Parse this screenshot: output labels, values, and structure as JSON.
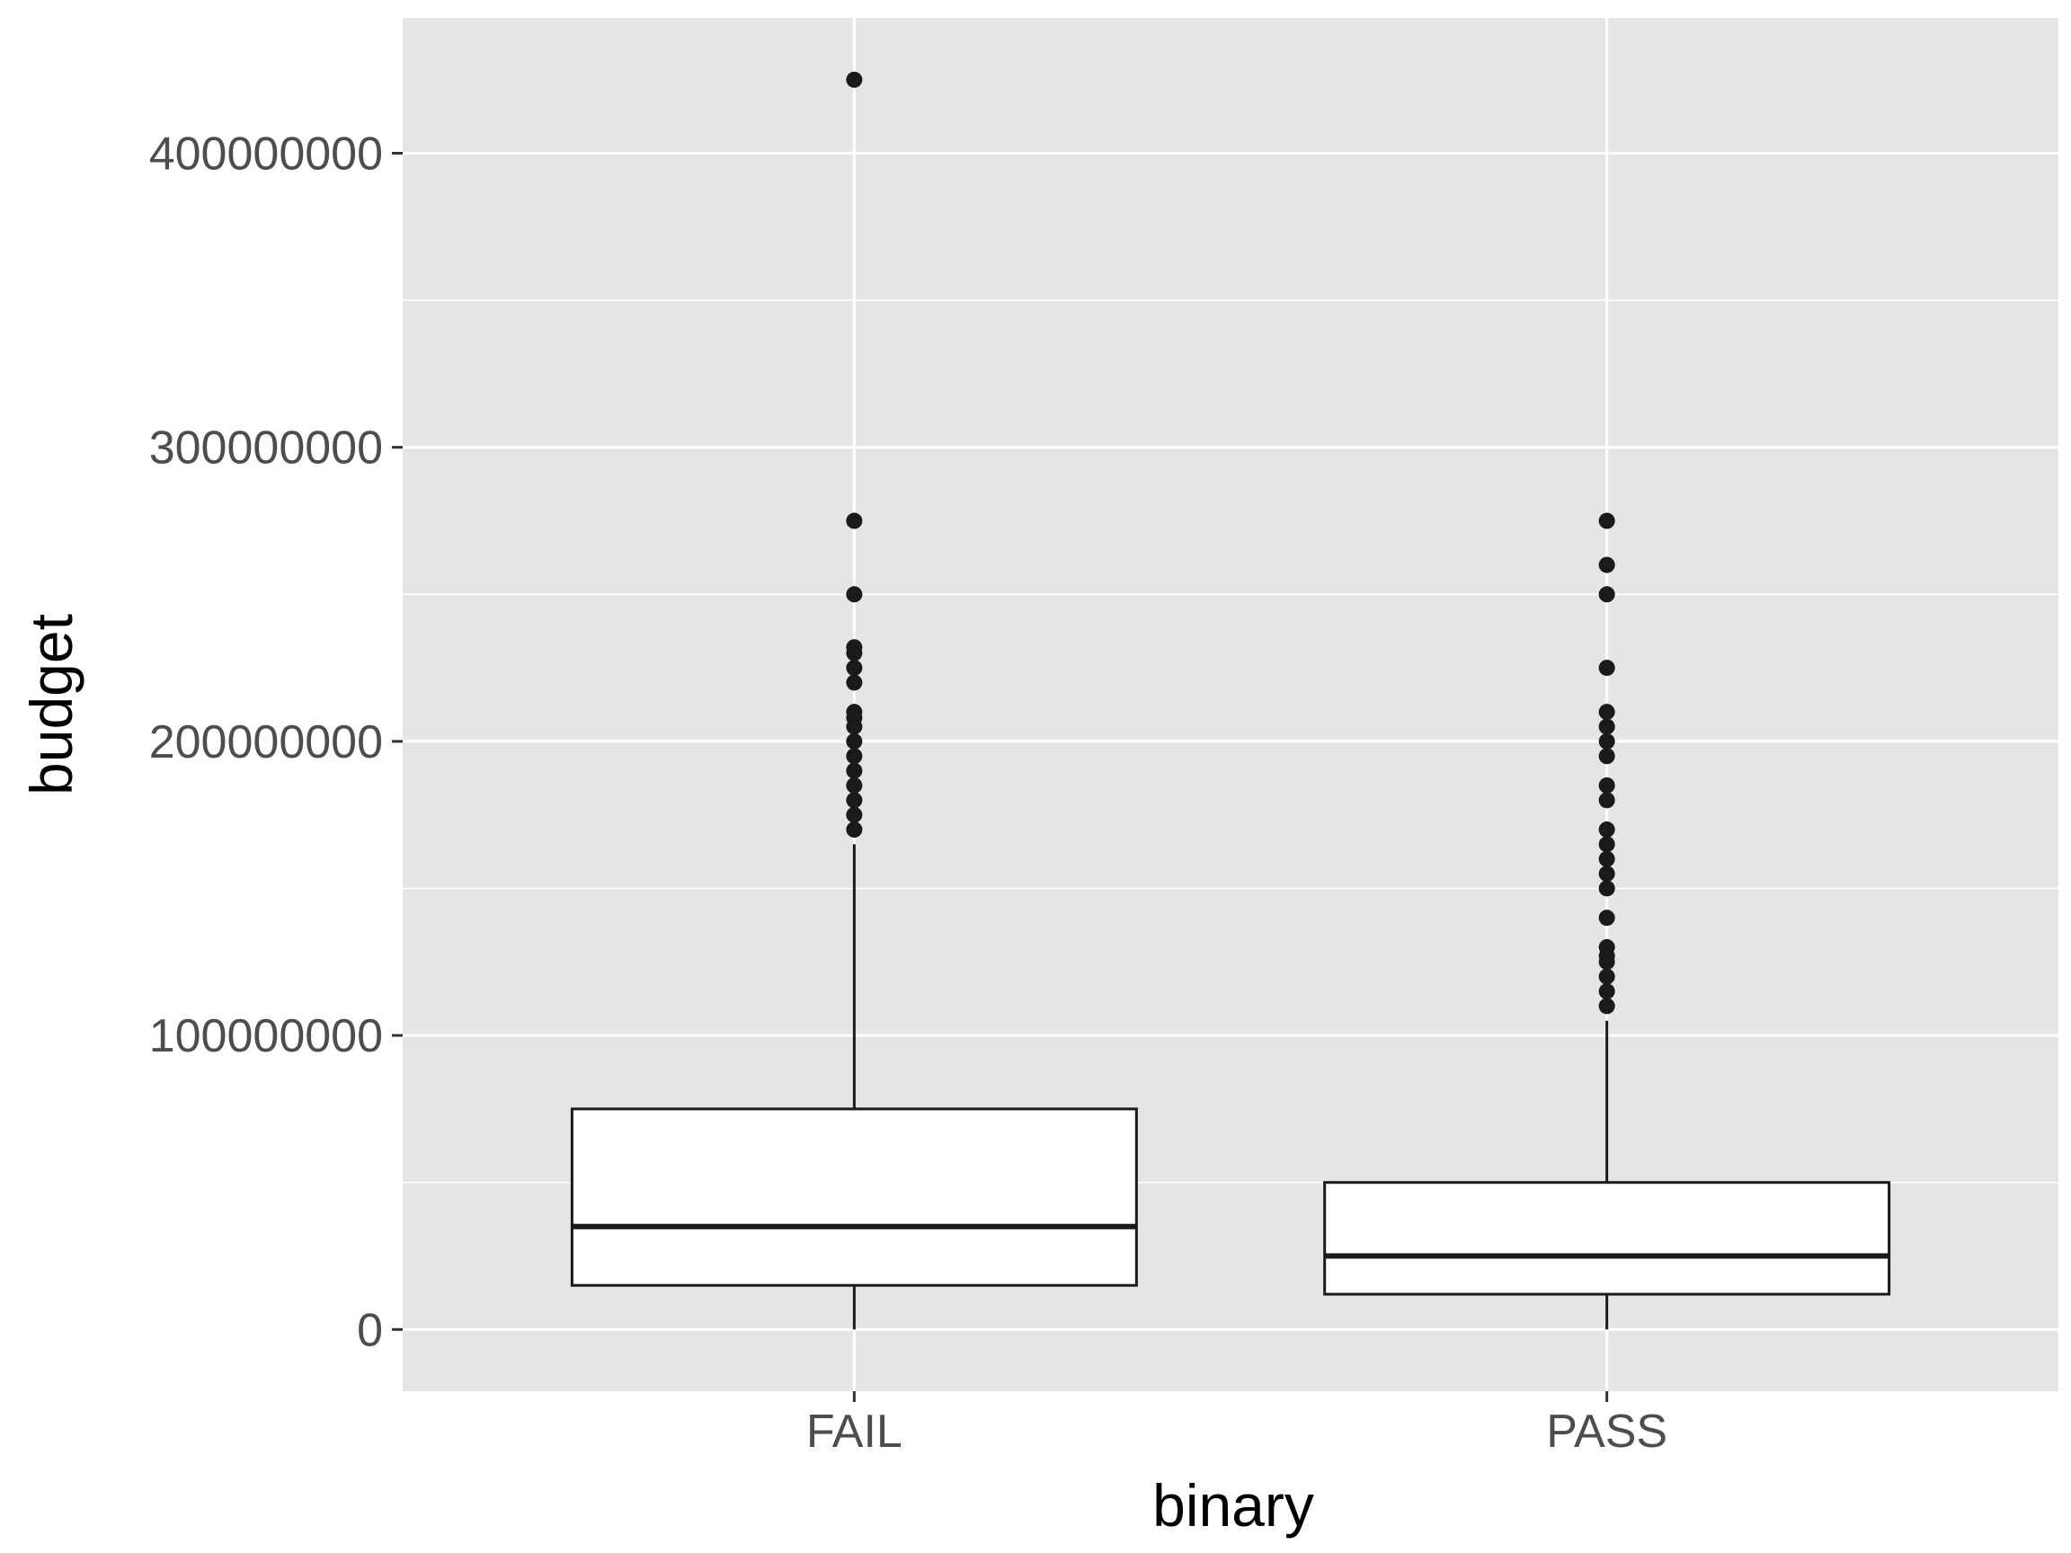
{
  "chart_data": {
    "type": "boxplot",
    "title": "",
    "xlabel": "binary",
    "ylabel": "budget",
    "ylim": [
      -21000000,
      446000000
    ],
    "y_ticks": [
      0,
      100000000,
      200000000,
      300000000,
      400000000
    ],
    "y_tick_labels": [
      "0",
      "100000000",
      "200000000",
      "300000000",
      "400000000"
    ],
    "categories": [
      "FAIL",
      "PASS"
    ],
    "grid": true,
    "legend": "none",
    "boxes": [
      {
        "category": "FAIL",
        "min": 0,
        "q1": 15000000,
        "median": 35000000,
        "q3": 75000000,
        "max": 165000000,
        "outliers": [
          425000000,
          275000000,
          250000000,
          232000000,
          230000000,
          225000000,
          220000000,
          210000000,
          208000000,
          205000000,
          200000000,
          195000000,
          190000000,
          185000000,
          180000000,
          175000000,
          170000000
        ]
      },
      {
        "category": "PASS",
        "min": 0,
        "q1": 12000000,
        "median": 25000000,
        "q3": 50000000,
        "max": 105000000,
        "outliers": [
          275000000,
          260000000,
          250000000,
          225000000,
          210000000,
          205000000,
          200000000,
          195000000,
          185000000,
          180000000,
          170000000,
          165000000,
          160000000,
          155000000,
          150000000,
          140000000,
          130000000,
          127000000,
          125000000,
          120000000,
          115000000,
          110000000
        ]
      }
    ],
    "colors": {
      "panel_background": "#e5e5e5",
      "grid": "#ffffff",
      "box_fill": "#ffffff",
      "box_stroke": "#1a1a1a",
      "outlier": "#1a1a1a"
    }
  }
}
